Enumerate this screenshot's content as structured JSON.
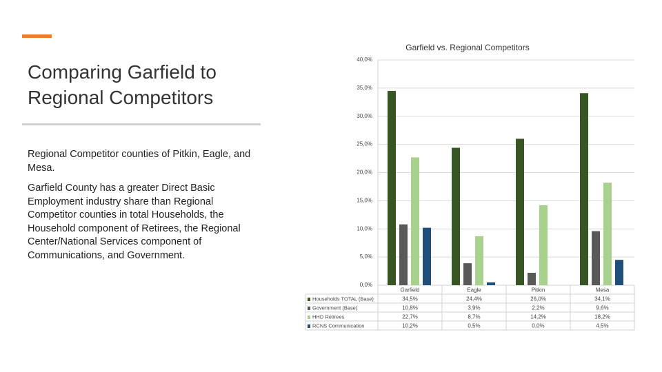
{
  "header": {
    "title": "Comparing Garfield to Regional Competitors"
  },
  "body": {
    "paragraphs": [
      "Regional Competitor counties of Pitkin, Eagle, and Mesa.",
      "Garfield County has a greater Direct Basic Employment industry share than Regional Competitor counties in total Households, the Household component of Retirees, the Regional Center/National Services component of Communications, and Government."
    ]
  },
  "chart_data": {
    "type": "bar",
    "title": "Garfield vs. Regional Competitors",
    "categories": [
      "Garfield",
      "Eagle",
      "Pitkin",
      "Mesa"
    ],
    "series": [
      {
        "name": "Households TOTAL (Base)",
        "color": "#375623",
        "values": [
          34.5,
          24.4,
          26.0,
          34.1
        ],
        "value_labels": [
          "34,5%",
          "24,4%",
          "26,0%",
          "34,1%"
        ]
      },
      {
        "name": "Government (Base)",
        "color": "#595959",
        "values": [
          10.8,
          3.9,
          2.2,
          9.6
        ],
        "value_labels": [
          "10,8%",
          "3,9%",
          "2,2%",
          "9,6%"
        ]
      },
      {
        "name": "HHD Retirees",
        "color": "#a9d18e",
        "values": [
          22.7,
          8.7,
          14.2,
          18.2
        ],
        "value_labels": [
          "22,7%",
          "8,7%",
          "14,2%",
          "18,2%"
        ]
      },
      {
        "name": "RCNS Communication",
        "color": "#1f4e79",
        "values": [
          10.2,
          0.5,
          0.0,
          4.5
        ],
        "value_labels": [
          "10,2%",
          "0,5%",
          "0,0%",
          "4,5%"
        ]
      }
    ],
    "ylim": [
      0,
      40
    ],
    "yticks": [
      {
        "value": 0,
        "label": "0,0%"
      },
      {
        "value": 5,
        "label": "5,0%"
      },
      {
        "value": 10,
        "label": "10,0%"
      },
      {
        "value": 15,
        "label": "15,0%"
      },
      {
        "value": 20,
        "label": "20,0%"
      },
      {
        "value": 25,
        "label": "25,0%"
      },
      {
        "value": 30,
        "label": "30,0%"
      },
      {
        "value": 35,
        "label": "35,0%"
      },
      {
        "value": 40,
        "label": "40,0%"
      }
    ],
    "grid": true
  }
}
